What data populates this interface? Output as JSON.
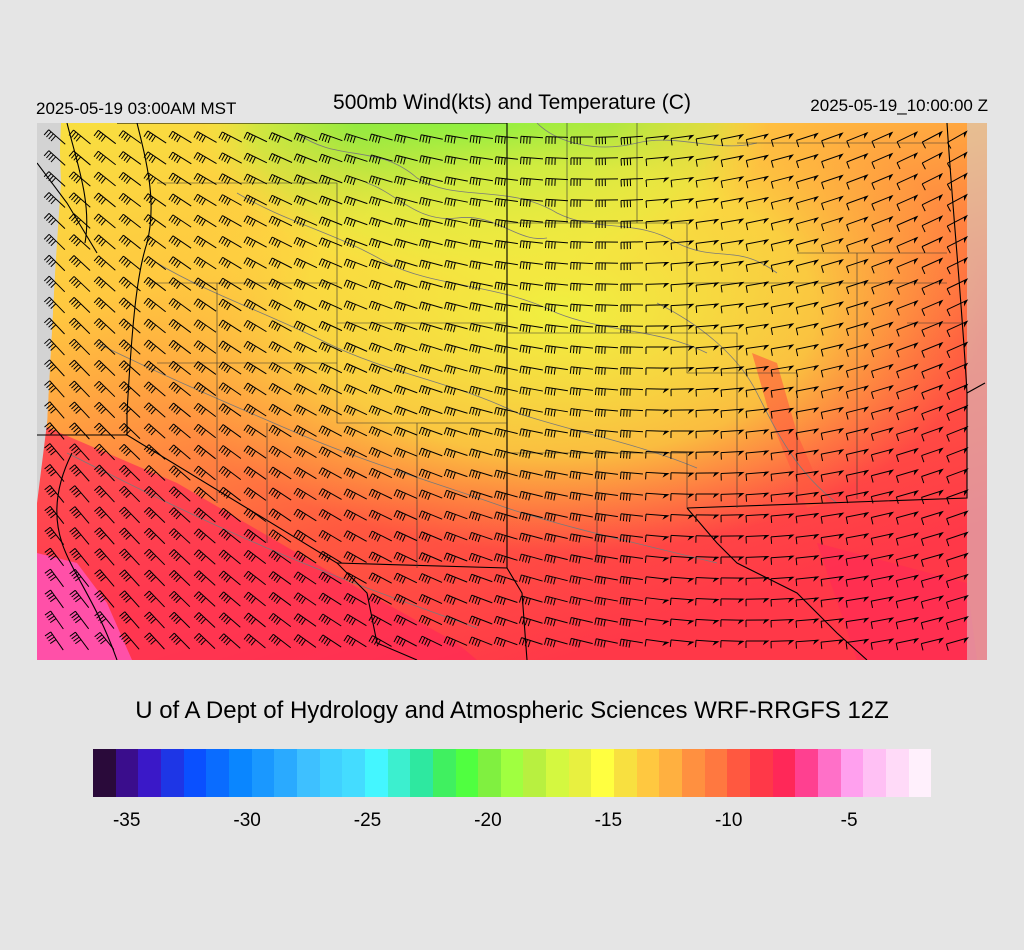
{
  "header": {
    "local_time": "2025-05-19 03:00AM MST",
    "title": "500mb Wind(kts) and Temperature (C)",
    "utc_time": "2025-05-19_10:00:00 Z"
  },
  "credit": "U of A Dept of Hydrology and Atmospheric Sciences WRF-RRGFS 12Z",
  "legend": {
    "colors": [
      "#2a0a3a",
      "#3a0d8c",
      "#3a18c8",
      "#1e36e6",
      "#0a50ff",
      "#0a6cff",
      "#0a86ff",
      "#1a98ff",
      "#2aaaff",
      "#3ec0ff",
      "#40d0ff",
      "#44dcff",
      "#44f6ff",
      "#3cefcf",
      "#2ee8a0",
      "#40f060",
      "#50ff40",
      "#80f040",
      "#a0ff40",
      "#b8f040",
      "#d4f840",
      "#e8f040",
      "#ffff40",
      "#f8e040",
      "#ffc840",
      "#ffb040",
      "#ff9040",
      "#ff7840",
      "#ff5840",
      "#ff3848",
      "#ff2858",
      "#ff4090",
      "#ff70c8",
      "#ffa0ee",
      "#ffc0f4",
      "#ffdaf8",
      "#fff0fc"
    ],
    "ticks": [
      "-35",
      "-30",
      "-25",
      "-20",
      "-15",
      "-10",
      "-5"
    ]
  },
  "map": {
    "field": "500mb temperature (C) shaded with wind barbs (kts)",
    "colors": {
      "background": "#d3d3d3",
      "borders": "#000000",
      "contours": "#7a7a7a"
    }
  }
}
